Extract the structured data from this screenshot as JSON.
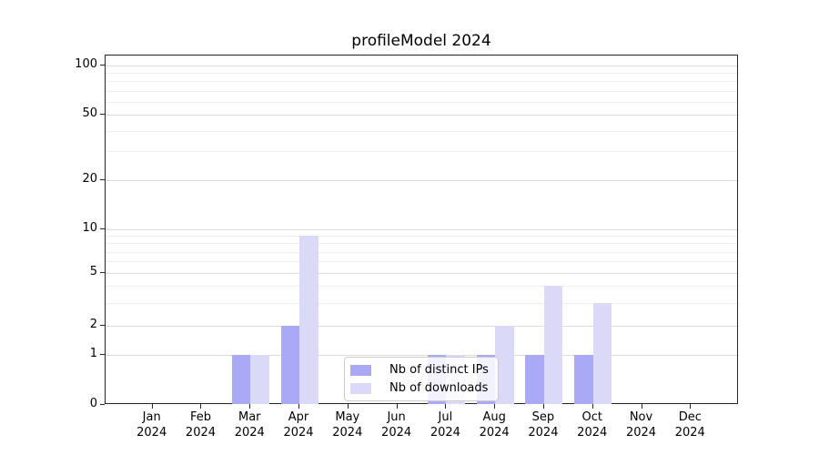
{
  "figure": {
    "title": "profileModel 2024"
  },
  "chart_data": {
    "type": "bar",
    "title": "profileModel 2024",
    "categories": [
      "Jan",
      "Feb",
      "Mar",
      "Apr",
      "May",
      "Jun",
      "Jul",
      "Aug",
      "Sep",
      "Oct",
      "Nov",
      "Dec"
    ],
    "x_sublabel": "2024",
    "series": [
      {
        "name": "Nb of distinct IPs",
        "color": "#a9a9f5",
        "values": [
          0,
          0,
          1,
          2,
          0,
          0,
          1,
          1,
          1,
          1,
          0,
          0
        ]
      },
      {
        "name": "Nb of downloads",
        "color": "#dadaf8",
        "values": [
          0,
          0,
          1,
          9,
          0,
          0,
          1,
          2,
          4,
          3,
          0,
          0
        ]
      }
    ],
    "y_axis": {
      "scale": "symlog",
      "ticks": [
        0,
        1,
        2,
        5,
        10,
        20,
        50,
        100
      ],
      "minor_gridlines": [
        3,
        4,
        6,
        7,
        8,
        9,
        30,
        40,
        60,
        70,
        80,
        90
      ],
      "range": [
        0,
        110
      ]
    },
    "xlabel": "",
    "ylabel": "",
    "grid": "horizontal",
    "legend_position": "lower center"
  }
}
